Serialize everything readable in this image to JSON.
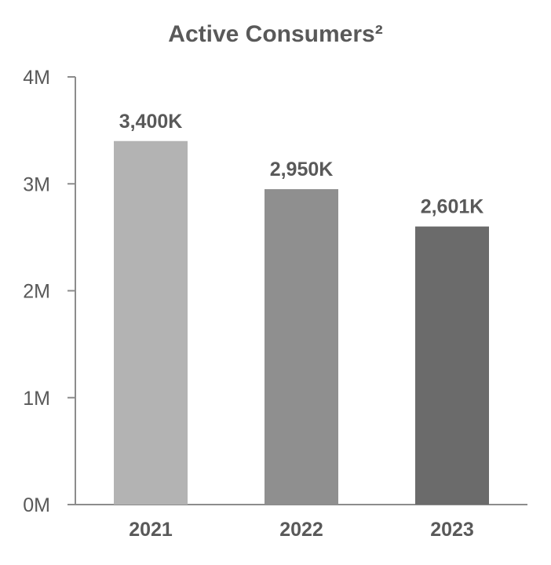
{
  "chart_data": {
    "type": "bar",
    "title": "Active Consumers²",
    "categories": [
      "2021",
      "2022",
      "2023"
    ],
    "values": [
      3400000,
      2950000,
      2601000
    ],
    "data_labels": [
      "3,400K",
      "2,950K",
      "2,601K"
    ],
    "bar_colors": [
      "#b3b3b3",
      "#8f8f8f",
      "#6b6b6b"
    ],
    "ylim": [
      0,
      4000000
    ],
    "y_ticks": [
      {
        "value": 0,
        "label": "0M"
      },
      {
        "value": 1000000,
        "label": "1M"
      },
      {
        "value": 2000000,
        "label": "2M"
      },
      {
        "value": 3000000,
        "label": "3M"
      },
      {
        "value": 4000000,
        "label": "4M"
      }
    ],
    "xlabel": "",
    "ylabel": "",
    "grid": false,
    "legend": "none",
    "text_color": "#595959",
    "axis_color": "#8c8c8c"
  }
}
